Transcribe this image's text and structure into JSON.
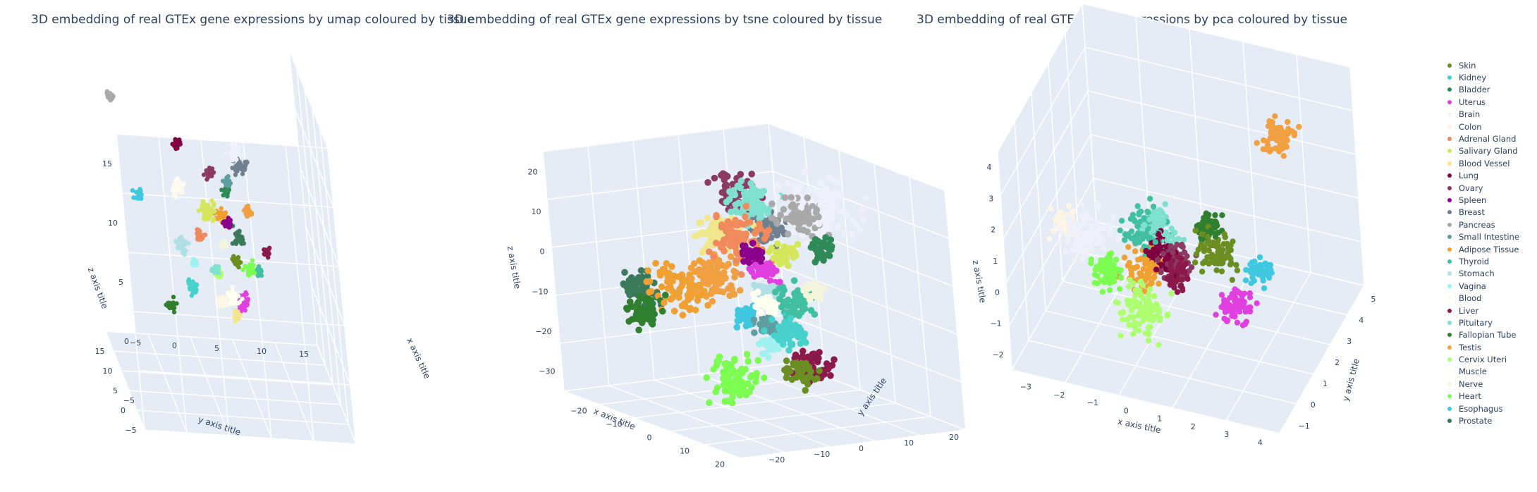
{
  "chart_data": [
    {
      "type": "scatter3d",
      "title": "3D embedding of real GTEx gene expressions by umap coloured by tissue",
      "xlabel": "x axis title",
      "ylabel": "y axis title",
      "zlabel": "z axis title",
      "xticks": [
        "−5",
        "0",
        "5",
        "10",
        "15"
      ],
      "yticks": [
        "−5",
        "0",
        "5",
        "10",
        "15"
      ],
      "zticks": [
        "−5",
        "0",
        "5",
        "10",
        "15"
      ],
      "xlim": [
        -5,
        17
      ],
      "ylim": [
        -5,
        17
      ],
      "zlim": [
        -7,
        17
      ],
      "clusters": [
        {
          "tissue": "Brain",
          "x": 1,
          "y": 8,
          "z": 14,
          "spread": 0.6
        },
        {
          "tissue": "Blood",
          "x": 3,
          "y": 2,
          "z": 10,
          "spread": 0.6
        },
        {
          "tissue": "Pancreas",
          "x": 12,
          "y": -3,
          "z": 14,
          "spread": 0.4
        },
        {
          "tissue": "Breast",
          "x": 12,
          "y": 10,
          "z": 9,
          "spread": 0.6
        },
        {
          "tissue": "Salivary Gland",
          "x": 4,
          "y": 5,
          "z": 8,
          "spread": 0.8
        },
        {
          "tissue": "Stomach",
          "x": 4,
          "y": 2,
          "z": 5,
          "spread": 0.6
        },
        {
          "tissue": "Kidney",
          "x": 6,
          "y": 3,
          "z": 1,
          "spread": 0.5
        },
        {
          "tissue": "Uterus",
          "x": 6,
          "y": 8,
          "z": 0,
          "spread": 0.6
        },
        {
          "tissue": "Testis",
          "x": 10,
          "y": 10,
          "z": 6,
          "spread": 0.4
        },
        {
          "tissue": "Prostate",
          "x": 4,
          "y": 8,
          "z": 6,
          "spread": 0.5
        },
        {
          "tissue": "Spleen",
          "x": 4,
          "y": 7,
          "z": 7,
          "spread": 0.4
        },
        {
          "tissue": "Fallopian Tube",
          "x": 2,
          "y": 0,
          "z": 1,
          "spread": 0.4
        },
        {
          "tissue": "Adrenal Gland",
          "x": 4,
          "y": 4,
          "z": 6,
          "spread": 0.4
        },
        {
          "tissue": "Colon",
          "x": 6,
          "y": 6,
          "z": 0,
          "spread": 0.4
        },
        {
          "tissue": "Esophagus",
          "x": 4,
          "y": -2,
          "z": 9,
          "spread": 0.4
        },
        {
          "tissue": "Liver",
          "x": 12,
          "y": 12,
          "z": 2,
          "spread": 0.3
        },
        {
          "tissue": "Muscle",
          "x": 4,
          "y": 7,
          "z": 1,
          "spread": 0.5
        },
        {
          "tissue": "Lung",
          "x": 8,
          "y": 3,
          "z": 12,
          "spread": 0.4
        },
        {
          "tissue": "Ovary",
          "x": 7,
          "y": 6,
          "z": 10,
          "spread": 0.4
        },
        {
          "tissue": "Small Intestine",
          "x": 8,
          "y": 8,
          "z": 9,
          "spread": 0.4
        },
        {
          "tissue": "Bladder",
          "x": 3,
          "y": 7,
          "z": 10,
          "spread": 0.3
        },
        {
          "tissue": "Thyroid",
          "x": 5,
          "y": 10,
          "z": 3,
          "spread": 0.3
        },
        {
          "tissue": "Cervix Uteri",
          "x": 7,
          "y": 6,
          "z": 2,
          "spread": 0.3
        },
        {
          "tissue": "Nerve",
          "x": 2,
          "y": 6,
          "z": 6,
          "spread": 0.3
        },
        {
          "tissue": "Heart",
          "x": 5,
          "y": 9,
          "z": 3,
          "spread": 0.5
        },
        {
          "tissue": "Adipose Tissue",
          "x": 9,
          "y": 7,
          "z": 6,
          "spread": 0.5
        },
        {
          "tissue": "Vagina",
          "x": 3,
          "y": 3,
          "z": 4,
          "spread": 0.3
        },
        {
          "tissue": "Pituitary",
          "x": 2,
          "y": 5,
          "z": 4,
          "spread": 0.3
        },
        {
          "tissue": "Skin",
          "x": 7,
          "y": 8,
          "z": 3,
          "spread": 0.4
        },
        {
          "tissue": "Blood Vessel",
          "x": 3,
          "y": 7,
          "z": 0,
          "spread": 0.4
        }
      ]
    },
    {
      "type": "scatter3d",
      "title": "3D embedding of real GTEx gene expressions by tsne coloured by tissue",
      "xlabel": "x axis title",
      "ylabel": "y axis title",
      "zlabel": "z axis title",
      "xticks": [
        "−20",
        "−10",
        "0",
        "10",
        "20"
      ],
      "yticks": [
        "−20",
        "−10",
        "0",
        "10",
        "20"
      ],
      "zticks": [
        "−30",
        "−20",
        "−10",
        "0",
        "10",
        "20"
      ],
      "xlim": [
        -28,
        28
      ],
      "ylim": [
        -28,
        28
      ],
      "zlim": [
        -32,
        26
      ],
      "clusters": [
        {
          "tissue": "Pancreas",
          "x": 12,
          "y": 4,
          "z": 18,
          "spread": 4
        },
        {
          "tissue": "Blood Vessel",
          "x": -20,
          "y": 8,
          "z": 4,
          "spread": 4
        },
        {
          "tissue": "Pituitary",
          "x": -12,
          "y": 10,
          "z": 14,
          "spread": 4
        },
        {
          "tissue": "Adrenal Gland",
          "x": -6,
          "y": 2,
          "z": 8,
          "spread": 5
        },
        {
          "tissue": "Ovary",
          "x": -22,
          "y": 14,
          "z": 12,
          "spread": 4
        },
        {
          "tissue": "Breast",
          "x": -18,
          "y": 18,
          "z": 4,
          "spread": 3
        },
        {
          "tissue": "Spleen",
          "x": 0,
          "y": 0,
          "z": 6,
          "spread": 2
        },
        {
          "tissue": "Brain",
          "x": 10,
          "y": 10,
          "z": 18,
          "spread": 6
        },
        {
          "tissue": "Bladder",
          "x": 18,
          "y": 4,
          "z": 12,
          "spread": 2
        },
        {
          "tissue": "Thyroid",
          "x": 18,
          "y": -4,
          "z": 0,
          "spread": 3
        },
        {
          "tissue": "Adipose Tissue",
          "x": -16,
          "y": -6,
          "z": -6,
          "spread": 5
        },
        {
          "tissue": "Testis",
          "x": -10,
          "y": -2,
          "z": -2,
          "spread": 4
        },
        {
          "tissue": "Prostate",
          "x": -24,
          "y": -10,
          "z": -8,
          "spread": 3
        },
        {
          "tissue": "Fallopian Tube",
          "x": -18,
          "y": -14,
          "z": -12,
          "spread": 3
        },
        {
          "tissue": "Heart",
          "x": 4,
          "y": -10,
          "z": -22,
          "spread": 5
        },
        {
          "tissue": "Nerve",
          "x": 22,
          "y": -2,
          "z": 4,
          "spread": 2
        },
        {
          "tissue": "Kidney",
          "x": 20,
          "y": -8,
          "z": -6,
          "spread": 3
        },
        {
          "tissue": "Liver",
          "x": 24,
          "y": -6,
          "z": -14,
          "spread": 3
        },
        {
          "tissue": "Skin",
          "x": 26,
          "y": -10,
          "z": -14,
          "spread": 3
        },
        {
          "tissue": "Esophagus",
          "x": 2,
          "y": -4,
          "z": -8,
          "spread": 2
        },
        {
          "tissue": "Stomach",
          "x": 4,
          "y": 0,
          "z": -2,
          "spread": 2
        },
        {
          "tissue": "Uterus",
          "x": 2,
          "y": 2,
          "z": 2,
          "spread": 2
        },
        {
          "tissue": "Salivary Gland",
          "x": 8,
          "y": 2,
          "z": 8,
          "spread": 2
        },
        {
          "tissue": "Muscle",
          "x": 6,
          "y": -2,
          "z": -4,
          "spread": 2
        },
        {
          "tissue": "Vagina",
          "x": 12,
          "y": -6,
          "z": -12,
          "spread": 2
        },
        {
          "tissue": "Small Intestine",
          "x": 6,
          "y": -2,
          "z": -10,
          "spread": 2
        }
      ]
    },
    {
      "type": "scatter3d",
      "title": "3D embedding of real GTEx gene expressions by pca coloured by tissue",
      "xlabel": "x axis title",
      "ylabel": "y axis title",
      "zlabel": "z axis title",
      "xticks": [
        "−3",
        "−2",
        "−1",
        "0",
        "1",
        "2",
        "3",
        "4"
      ],
      "yticks": [
        "−1",
        "0",
        "1",
        "2",
        "3",
        "4",
        "5"
      ],
      "zticks": [
        "−2",
        "−1",
        "0",
        "1",
        "2",
        "3",
        "4"
      ],
      "xlim": [
        -3.5,
        4.5
      ],
      "ylim": [
        -1.5,
        5.5
      ],
      "zlim": [
        -2.5,
        4.2
      ],
      "clusters": [
        {
          "tissue": "Testis",
          "x": 3.2,
          "y": 3.2,
          "z": 3.2,
          "spread": 0.4
        },
        {
          "tissue": "Skin",
          "x": 1.8,
          "y": 1.2,
          "z": 0.6,
          "spread": 0.5
        },
        {
          "tissue": "Brain",
          "x": -1.8,
          "y": 0.5,
          "z": 0.8,
          "spread": 0.6
        },
        {
          "tissue": "Thyroid",
          "x": -0.2,
          "y": 1.0,
          "z": 1.0,
          "spread": 0.5
        },
        {
          "tissue": "Pituitary",
          "x": 0.2,
          "y": 1.1,
          "z": 1.1,
          "spread": 0.4
        },
        {
          "tissue": "Cervix Uteri",
          "x": 0.2,
          "y": -0.5,
          "z": -0.4,
          "spread": 0.6
        },
        {
          "tissue": "Heart",
          "x": -1.0,
          "y": 0.0,
          "z": 0.2,
          "spread": 0.4
        },
        {
          "tissue": "Adipose Tissue",
          "x": 0.0,
          "y": 0.5,
          "z": 0.2,
          "spread": 0.5
        },
        {
          "tissue": "Ovary",
          "x": 0.8,
          "y": 0.8,
          "z": 0.4,
          "spread": 0.4
        },
        {
          "tissue": "Uterus",
          "x": 2.6,
          "y": 0.4,
          "z": -0.3,
          "spread": 0.4
        },
        {
          "tissue": "Lung",
          "x": 0.4,
          "y": 0.7,
          "z": 0.6,
          "spread": 0.4
        },
        {
          "tissue": "Liver",
          "x": 1.0,
          "y": 0.4,
          "z": 0.3,
          "spread": 0.3
        },
        {
          "tissue": "Esophagus",
          "x": 3.0,
          "y": 1.4,
          "z": 0.2,
          "spread": 0.3
        },
        {
          "tissue": "Fallopian Tube",
          "x": 1.4,
          "y": 1.8,
          "z": 1.0,
          "spread": 0.3
        },
        {
          "tissue": "Colon",
          "x": -2.5,
          "y": 0.6,
          "z": 0.9,
          "spread": 0.3
        }
      ]
    }
  ],
  "legend": [
    {
      "name": "Skin",
      "color": "#6b8e23"
    },
    {
      "name": "Kidney",
      "color": "#48d1cc"
    },
    {
      "name": "Bladder",
      "color": "#2e8b57"
    },
    {
      "name": "Uterus",
      "color": "#e040e0"
    },
    {
      "name": "Brain",
      "color": "#f0f0fa"
    },
    {
      "name": "Colon",
      "color": "#fdf5e6"
    },
    {
      "name": "Adrenal Gland",
      "color": "#f08a5d"
    },
    {
      "name": "Salivary Gland",
      "color": "#d4e65c"
    },
    {
      "name": "Blood Vessel",
      "color": "#f0e68c"
    },
    {
      "name": "Lung",
      "color": "#800040"
    },
    {
      "name": "Ovary",
      "color": "#8b3a62"
    },
    {
      "name": "Spleen",
      "color": "#8b008b"
    },
    {
      "name": "Breast",
      "color": "#708090"
    },
    {
      "name": "Pancreas",
      "color": "#a9a9a9"
    },
    {
      "name": "Small Intestine",
      "color": "#5f9ea0"
    },
    {
      "name": "Adipose Tissue",
      "color": "#f0a030"
    },
    {
      "name": "Thyroid",
      "color": "#40c0a0"
    },
    {
      "name": "Stomach",
      "color": "#b0e0e6"
    },
    {
      "name": "Vagina",
      "color": "#a0f0f0"
    },
    {
      "name": "Blood",
      "color": "#fffaf0"
    },
    {
      "name": "Liver",
      "color": "#8b1a4a"
    },
    {
      "name": "Pituitary",
      "color": "#7fe0d0"
    },
    {
      "name": "Fallopian Tube",
      "color": "#2f7f2f"
    },
    {
      "name": "Testis",
      "color": "#f0a040"
    },
    {
      "name": "Cervix Uteri",
      "color": "#adff6f"
    },
    {
      "name": "Muscle",
      "color": "#fffff0"
    },
    {
      "name": "Nerve",
      "color": "#f5f5dc"
    },
    {
      "name": "Heart",
      "color": "#7cfc50"
    },
    {
      "name": "Esophagus",
      "color": "#40c8e0"
    },
    {
      "name": "Prostate",
      "color": "#3a7a5a"
    }
  ]
}
